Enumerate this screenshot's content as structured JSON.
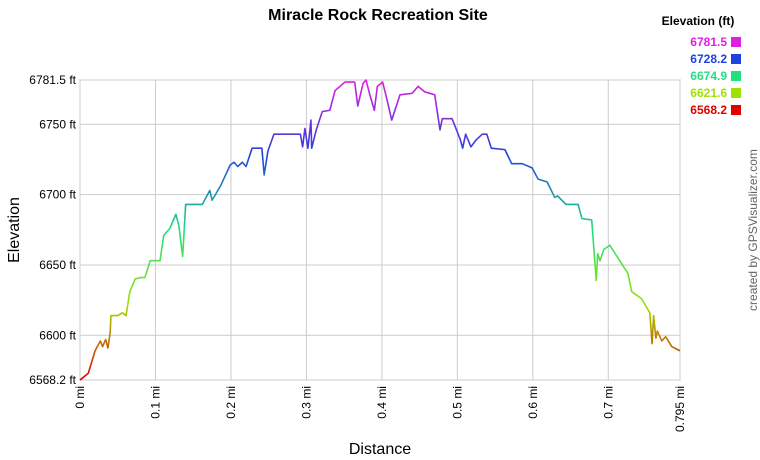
{
  "chart_data": {
    "type": "line",
    "title": "Miracle Rock Recreation Site",
    "x_label": "Distance",
    "y_label": "Elevation",
    "credit": "created by GPSVisualizer.com",
    "grid": true,
    "xlim": [
      0,
      0.795
    ],
    "ylim": [
      6568.2,
      6781.5
    ],
    "xticks": [
      {
        "value": 0,
        "label": "0 mi"
      },
      {
        "value": 0.1,
        "label": "0.1 mi"
      },
      {
        "value": 0.2,
        "label": "0.2 mi"
      },
      {
        "value": 0.3,
        "label": "0.3 mi"
      },
      {
        "value": 0.4,
        "label": "0.4 mi"
      },
      {
        "value": 0.5,
        "label": "0.5 mi"
      },
      {
        "value": 0.6,
        "label": "0.6 mi"
      },
      {
        "value": 0.7,
        "label": "0.7 mi"
      },
      {
        "value": 0.795,
        "label": "0.795 mi"
      }
    ],
    "yticks": [
      {
        "value": 6568.2,
        "label": "6568.2 ft"
      },
      {
        "value": 6600,
        "label": "6600 ft"
      },
      {
        "value": 6650,
        "label": "6650 ft"
      },
      {
        "value": 6700,
        "label": "6700 ft"
      },
      {
        "value": 6750,
        "label": "6750 ft"
      },
      {
        "value": 6781.5,
        "label": "6781.5 ft"
      }
    ],
    "legend": {
      "title": "Elevation (ft)",
      "position": "top-right",
      "stops": [
        {
          "value": 6781.5,
          "color": "#e020e0"
        },
        {
          "value": 6728.2,
          "color": "#2040e0"
        },
        {
          "value": 6674.9,
          "color": "#20e080"
        },
        {
          "value": 6621.6,
          "color": "#a0e000"
        },
        {
          "value": 6568.2,
          "color": "#e00000"
        }
      ]
    },
    "x": [
      0,
      0.011,
      0.02,
      0.027,
      0.03,
      0.034,
      0.037,
      0.04,
      0.041,
      0.05,
      0.056,
      0.061,
      0.066,
      0.073,
      0.08,
      0.086,
      0.093,
      0.106,
      0.111,
      0.119,
      0.127,
      0.131,
      0.136,
      0.14,
      0.162,
      0.172,
      0.175,
      0.186,
      0.199,
      0.204,
      0.209,
      0.215,
      0.22,
      0.228,
      0.241,
      0.244,
      0.249,
      0.257,
      0.292,
      0.295,
      0.298,
      0.302,
      0.306,
      0.307,
      0.313,
      0.321,
      0.331,
      0.338,
      0.351,
      0.364,
      0.368,
      0.375,
      0.379,
      0.384,
      0.39,
      0.394,
      0.401,
      0.407,
      0.413,
      0.424,
      0.44,
      0.448,
      0.457,
      0.47,
      0.477,
      0.48,
      0.493,
      0.504,
      0.507,
      0.511,
      0.518,
      0.525,
      0.533,
      0.539,
      0.545,
      0.563,
      0.572,
      0.586,
      0.599,
      0.607,
      0.619,
      0.629,
      0.633,
      0.644,
      0.66,
      0.665,
      0.678,
      0.684,
      0.686,
      0.689,
      0.694,
      0.702,
      0.726,
      0.731,
      0.744,
      0.755,
      0.758,
      0.76,
      0.763,
      0.765,
      0.771,
      0.776,
      0.784,
      0.795
    ],
    "values": [
      6568.2,
      6573,
      6589,
      6596,
      6592,
      6597,
      6591,
      6602,
      6614,
      6614,
      6616,
      6614,
      6631,
      6640,
      6641,
      6641,
      6653,
      6653,
      6671,
      6676,
      6686,
      6678,
      6656,
      6693,
      6693,
      6703,
      6696,
      6706,
      6721,
      6723,
      6720,
      6723,
      6720,
      6733,
      6733,
      6714,
      6731,
      6743,
      6743,
      6734,
      6747,
      6733,
      6753,
      6733,
      6746,
      6759,
      6760,
      6774,
      6780,
      6780,
      6763,
      6779,
      6781.5,
      6771,
      6760,
      6777,
      6780,
      6767,
      6753,
      6771,
      6772,
      6777,
      6773,
      6771,
      6746,
      6754,
      6754,
      6739,
      6733,
      6743,
      6734,
      6739,
      6743,
      6743,
      6733,
      6732,
      6722,
      6722,
      6719,
      6711,
      6709,
      6698,
      6699,
      6693,
      6693,
      6683,
      6682,
      6639,
      6658,
      6653,
      6661,
      6664,
      6644,
      6631,
      6626,
      6616,
      6594,
      6614,
      6598,
      6603,
      6596,
      6599,
      6592,
      6589
    ]
  }
}
